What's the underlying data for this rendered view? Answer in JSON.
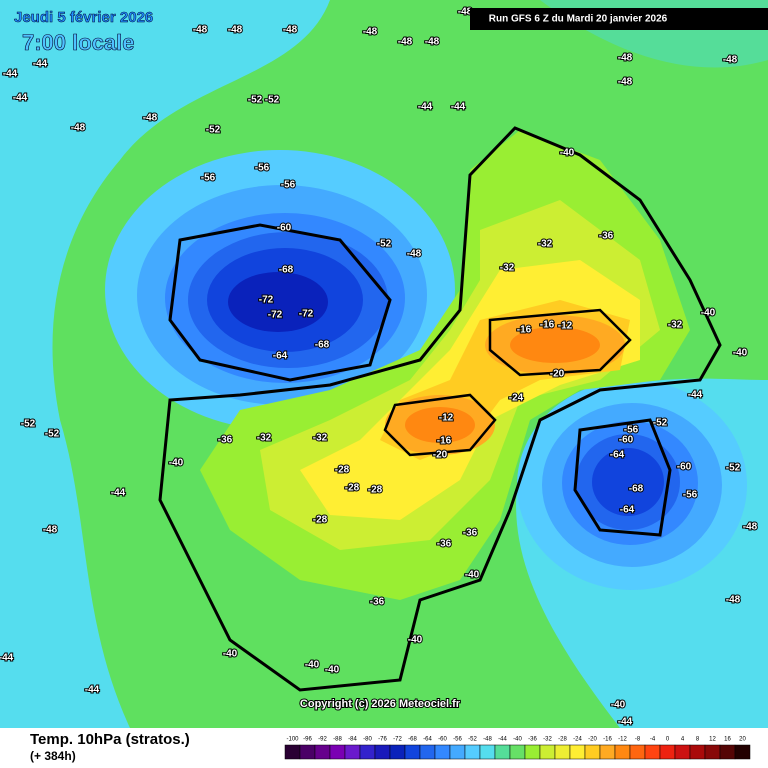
{
  "header": {
    "date": "Jeudi 5 février 2026",
    "time": "7:00 locale",
    "run": "Run GFS 6 Z du Mardi 20 janvier 2026"
  },
  "copyright": "Copyright (c) 2026 Meteociel.fr",
  "footer": {
    "title": "Temp. 10hPa (stratos.)",
    "forecast": "(+ 384h)"
  },
  "scale": {
    "ticks": [
      -100,
      -96,
      -92,
      -88,
      -84,
      -80,
      -76,
      -72,
      -68,
      -64,
      -60,
      -56,
      -52,
      -48,
      -44,
      -40,
      -36,
      -32,
      -28,
      -24,
      -20,
      -16,
      -12,
      -8,
      -4,
      0,
      4,
      8,
      12,
      16,
      20
    ],
    "colors": [
      "#2a0033",
      "#4a0066",
      "#66008c",
      "#7a00b3",
      "#6a1acc",
      "#3322cc",
      "#1a1abb",
      "#0a22bb",
      "#1144dd",
      "#2266ee",
      "#3388ff",
      "#44aaff",
      "#55ccff",
      "#55ddee",
      "#55dd99",
      "#66e066",
      "#99ee33",
      "#ccee33",
      "#eeee33",
      "#ffee33",
      "#ffcc22",
      "#ffaa22",
      "#ff8811",
      "#ff6611",
      "#ff4411",
      "#ee2211",
      "#cc1111",
      "#aa0a0a",
      "#880808",
      "#550505",
      "#220000"
    ]
  },
  "contour_labels": [
    -48,
    -48,
    -48,
    -48,
    -48,
    -48,
    -48,
    -48,
    -48,
    -48,
    -44,
    -44,
    -44,
    -48,
    -48,
    -52,
    -52,
    -52,
    -56,
    -56,
    -56,
    -60,
    -68,
    -72,
    -72,
    -72,
    -68,
    -64,
    -52,
    -48,
    -44,
    -44,
    -40,
    -36,
    -32,
    -32,
    -16,
    -16,
    -12,
    -20,
    -12,
    -16,
    -20,
    -24,
    -32,
    -40,
    -40,
    -44,
    -56,
    -60,
    -64,
    -68,
    -64,
    -60,
    -56,
    -52,
    -52,
    -48,
    -28,
    -28,
    -28,
    -28,
    -36,
    -36,
    -40,
    -36,
    -40,
    -40,
    -40,
    -40,
    -44,
    -48,
    -52,
    -52,
    -40,
    -36,
    -32,
    -32,
    -44,
    -44,
    -40,
    -44,
    -48
  ]
}
